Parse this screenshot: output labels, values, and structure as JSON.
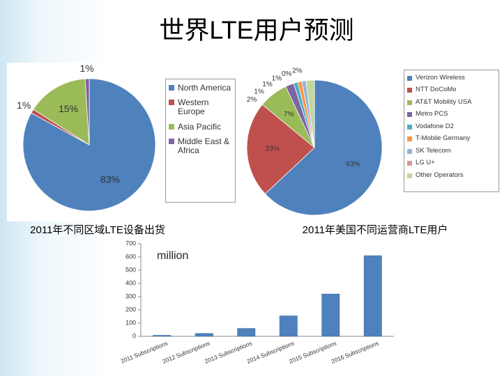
{
  "title": "世界LTE用户预测",
  "chart_data": [
    {
      "type": "pie",
      "title": "2011年不同区域LTE设备出货",
      "categories": [
        "North America",
        "Western Europe",
        "Asia Pacific",
        "Middle East & Africa"
      ],
      "values": [
        83,
        1,
        15,
        1
      ],
      "value_labels": [
        "83%",
        "1%",
        "15%",
        "1%"
      ],
      "colors": [
        "#4f81bd",
        "#c0504d",
        "#9bbb59",
        "#8064a2"
      ],
      "legend": "right"
    },
    {
      "type": "pie",
      "title": "2011年美国不同运营商LTE用户",
      "categories": [
        "Verizon Wireless",
        "NTT DoCoMo",
        "AT&T Mobility USA",
        "Metro PCS",
        "Vodafone D2",
        "T-Mobile Germany",
        "SK Telecom",
        "LG U+",
        "Other Operators"
      ],
      "values": [
        63,
        23,
        7,
        2,
        1,
        1,
        1,
        0,
        2
      ],
      "value_labels": [
        "63%",
        "23%",
        "7%",
        "2%",
        "1%",
        "1%",
        "1%",
        "0%",
        "2%"
      ],
      "colors": [
        "#4f81bd",
        "#c0504d",
        "#9bbb59",
        "#8064a2",
        "#4bacc6",
        "#f79646",
        "#95b3d7",
        "#d99694",
        "#c3d69b"
      ],
      "legend": "right"
    },
    {
      "type": "bar",
      "annotation": "million",
      "categories": [
        "2011 Subscriptions",
        "2012 Subscriptions",
        "2013 Subscriptions",
        "2014 Subscriptions",
        "2015 Subscriptions",
        "2016 Subscriptions"
      ],
      "values": [
        8,
        22,
        60,
        155,
        320,
        610
      ],
      "color": "#4f81bd",
      "ylim": [
        0,
        700
      ],
      "yticks": [
        0,
        100,
        200,
        300,
        400,
        500,
        600,
        700
      ],
      "grid": false
    }
  ]
}
